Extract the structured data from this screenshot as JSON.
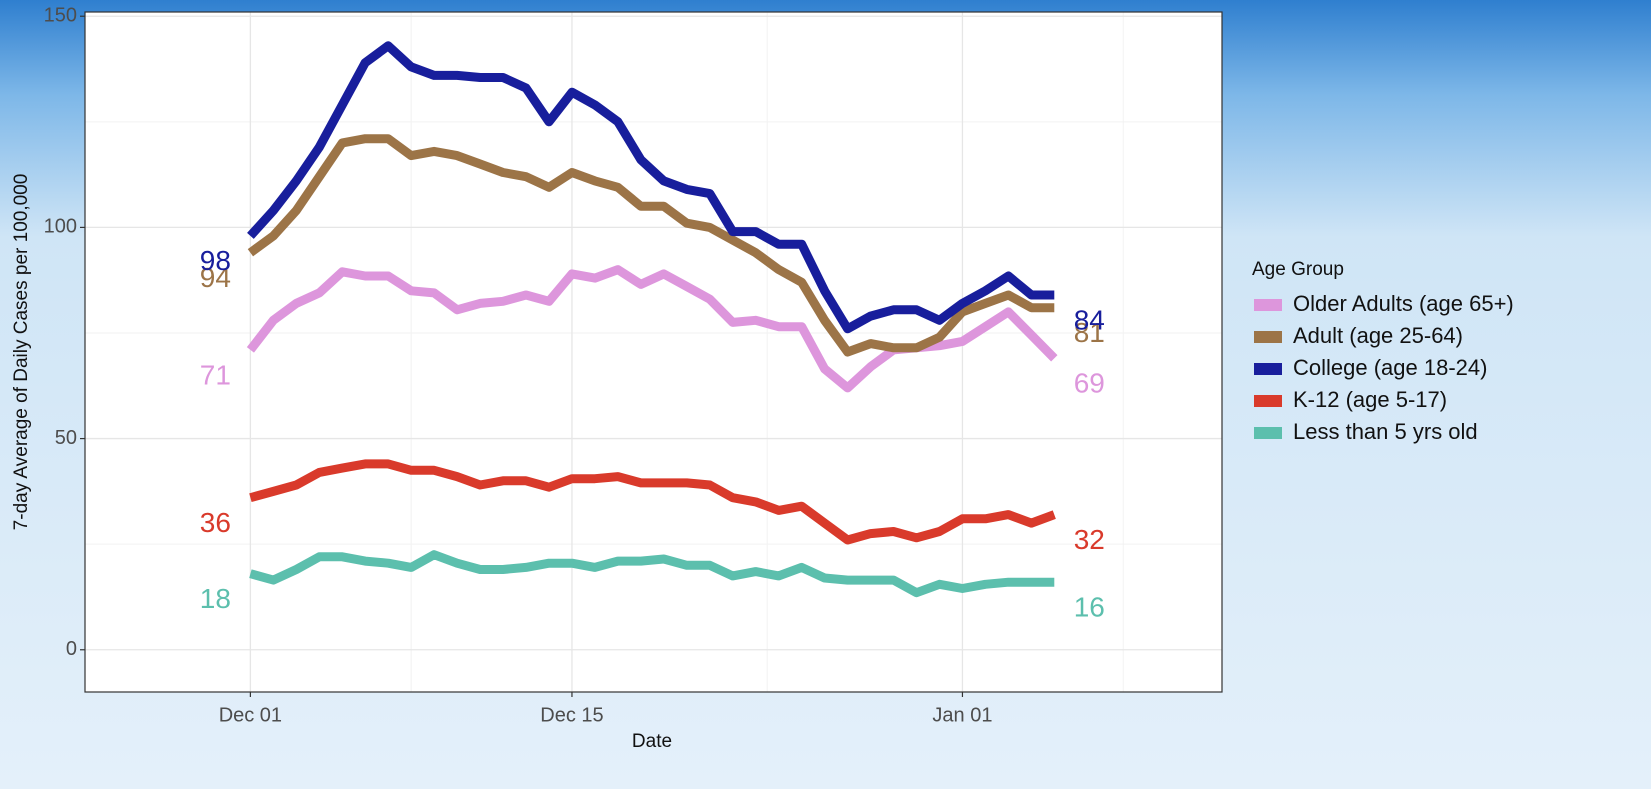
{
  "chart_data": {
    "type": "line",
    "x_label": "Date",
    "y_label": "7-day Average of Daily Cases per 100,000",
    "legend_title": "Age Group",
    "legend": "right",
    "grid": true,
    "x": [
      0,
      1,
      2,
      3,
      4,
      5,
      6,
      7,
      8,
      9,
      10,
      11,
      12,
      13,
      14,
      15,
      16,
      17,
      18,
      19,
      20,
      21,
      22,
      23,
      24,
      25,
      26,
      27,
      28,
      29,
      30,
      31,
      32,
      33,
      34,
      35
    ],
    "xlim": [
      -7.2,
      42.3
    ],
    "xticks": [
      {
        "value": 0,
        "label": "Dec 01"
      },
      {
        "value": 14,
        "label": "Dec 15"
      },
      {
        "value": 31,
        "label": "Jan 01"
      }
    ],
    "minor_xticks": [
      7,
      22.5,
      38
    ],
    "ylim": [
      -10,
      151
    ],
    "yticks": [
      0,
      50,
      100,
      150
    ],
    "minor_yticks": [
      25,
      75,
      125
    ],
    "series": [
      {
        "name": "Older Adults (age 65+)",
        "color": "#dd96dc",
        "values": [
          71,
          78,
          82,
          84.5,
          89.5,
          88.5,
          88.5,
          85,
          84.5,
          80.5,
          82,
          82.5,
          84,
          82.5,
          89,
          88,
          90,
          86.5,
          89,
          86,
          83,
          77.5,
          78,
          76.5,
          76.5,
          66.5,
          62,
          67,
          71,
          71.5,
          72,
          73,
          76.5,
          80,
          74.5,
          69
        ]
      },
      {
        "name": "Adult (age 25-64)",
        "color": "#9c7447",
        "values": [
          94,
          98,
          104,
          112,
          120,
          121,
          121,
          117,
          118,
          117,
          115,
          113,
          112,
          109.5,
          113,
          111,
          109.5,
          105,
          105,
          101,
          100,
          97,
          94,
          90,
          87,
          78,
          70.5,
          72.5,
          71.5,
          71.5,
          74,
          80,
          82,
          84,
          81,
          81
        ]
      },
      {
        "name": "College (age 18-24)",
        "color": "#181e9c",
        "values": [
          98,
          104,
          111,
          119,
          129,
          139,
          143,
          138,
          136,
          136,
          135.5,
          135.5,
          133,
          125,
          132,
          129,
          125,
          116,
          111,
          109,
          108,
          99,
          99,
          96,
          96,
          85,
          76,
          79,
          80.5,
          80.5,
          78,
          82,
          85,
          88.5,
          84,
          84
        ]
      },
      {
        "name": "K-12 (age 5-17)",
        "color": "#d93a2b",
        "values": [
          36,
          37.5,
          39,
          42,
          43,
          44,
          44,
          42.5,
          42.5,
          41,
          39,
          40,
          40,
          38.5,
          40.5,
          40.5,
          41,
          39.5,
          39.5,
          39.5,
          39,
          36,
          35,
          33,
          34,
          30,
          26,
          27.5,
          28,
          26.5,
          28,
          31,
          31,
          32,
          30,
          32
        ]
      },
      {
        "name": "Less than 5 yrs old",
        "color": "#5cbfad",
        "values": [
          18,
          16.5,
          19,
          22,
          22,
          21,
          20.5,
          19.5,
          22.5,
          20.5,
          19,
          19,
          19.5,
          20.5,
          20.5,
          19.5,
          21,
          21,
          21.5,
          20,
          20,
          17.5,
          18.5,
          17.5,
          19.5,
          17,
          16.5,
          16.5,
          16.5,
          13.5,
          15.5,
          14.5,
          15.5,
          16,
          16,
          16
        ]
      }
    ]
  }
}
